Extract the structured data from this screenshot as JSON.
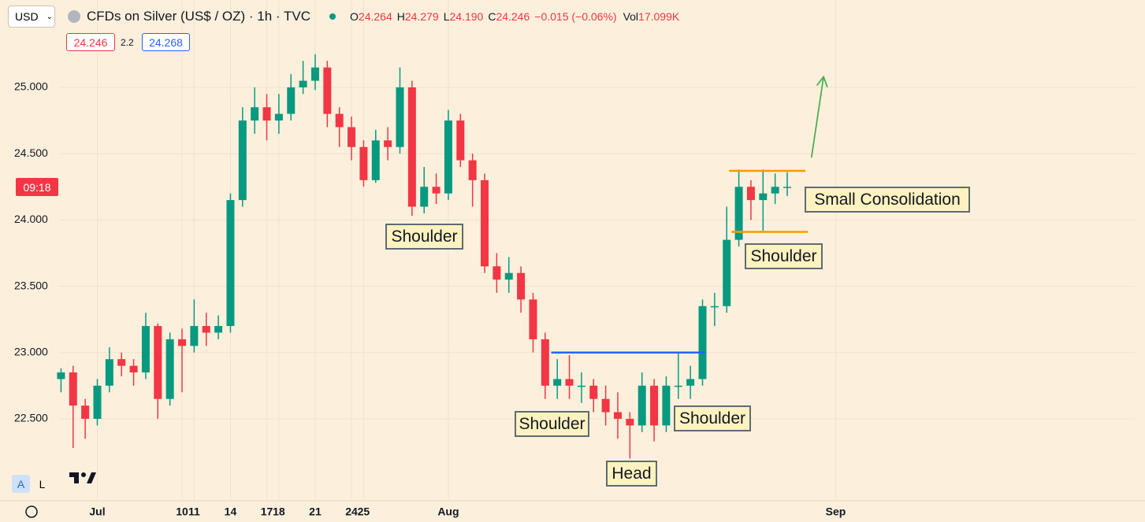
{
  "toolbar": {
    "currency": "USD",
    "symbol_title": "CFDs on Silver (US$ / OZ) · 1h · TVC",
    "ohlc": [
      {
        "label": "O",
        "value": "24.264"
      },
      {
        "label": "H",
        "value": "24.279"
      },
      {
        "label": "L",
        "value": "24.190"
      },
      {
        "label": "C",
        "value": "24.246"
      }
    ],
    "change": "−0.015 (−0.06%)",
    "volume_label": "Vol",
    "volume": "17.099K",
    "bid": "24.246",
    "spread": "2.2",
    "ask": "24.268",
    "countdown": "09:18",
    "scale_auto": "A",
    "scale_log": "L"
  },
  "chart_data": {
    "type": "candlestick",
    "x": [
      0,
      1,
      2,
      3,
      4,
      5,
      6,
      7,
      8,
      9,
      10,
      11,
      12,
      13,
      14,
      15,
      16,
      17,
      18,
      19,
      20,
      21,
      22,
      23,
      24,
      25,
      26,
      27,
      28,
      29,
      30,
      31,
      32,
      33,
      34,
      35,
      36,
      37,
      38,
      39,
      40,
      41,
      42,
      43,
      44,
      45,
      46,
      47,
      48,
      49,
      50,
      51,
      52,
      53,
      54,
      55,
      56,
      57,
      58,
      59,
      60
    ],
    "open": [
      22.8,
      22.85,
      22.6,
      22.5,
      22.75,
      22.95,
      22.9,
      22.85,
      23.2,
      22.65,
      23.1,
      23.05,
      23.2,
      23.15,
      23.2,
      24.15,
      24.75,
      24.85,
      24.75,
      24.8,
      25.0,
      25.05,
      25.15,
      24.8,
      24.7,
      24.55,
      24.3,
      24.6,
      24.55,
      25.0,
      24.1,
      24.25,
      24.2,
      24.75,
      24.45,
      24.3,
      23.65,
      23.55,
      23.6,
      23.4,
      23.1,
      22.75,
      22.8,
      22.75,
      22.75,
      22.65,
      22.55,
      22.5,
      22.45,
      22.75,
      22.45,
      22.75,
      22.75,
      22.8,
      23.35,
      23.35,
      23.85,
      24.25,
      24.15,
      24.2,
      24.25
    ],
    "high": [
      22.88,
      22.9,
      22.65,
      22.8,
      23.04,
      23.0,
      22.95,
      23.3,
      23.22,
      23.15,
      23.18,
      23.4,
      23.3,
      23.28,
      24.2,
      24.85,
      25.0,
      24.95,
      24.95,
      25.1,
      25.2,
      25.25,
      25.2,
      24.85,
      24.78,
      24.6,
      24.68,
      24.7,
      25.15,
      25.05,
      24.4,
      24.35,
      24.83,
      24.8,
      24.5,
      24.35,
      23.75,
      23.72,
      23.65,
      23.45,
      23.15,
      22.95,
      22.98,
      22.85,
      22.8,
      22.75,
      22.7,
      22.55,
      22.85,
      22.8,
      22.82,
      23.0,
      22.9,
      23.4,
      23.45,
      24.1,
      24.38,
      24.3,
      24.38,
      24.35,
      24.36
    ],
    "low": [
      22.7,
      22.28,
      22.35,
      22.45,
      22.7,
      22.82,
      22.75,
      22.8,
      22.5,
      22.6,
      22.7,
      23.0,
      23.05,
      23.1,
      23.15,
      24.1,
      24.65,
      24.6,
      24.65,
      24.75,
      24.95,
      24.98,
      24.7,
      24.55,
      24.45,
      24.25,
      24.28,
      24.45,
      24.5,
      24.03,
      24.05,
      24.12,
      24.15,
      24.4,
      24.1,
      23.6,
      23.45,
      23.45,
      23.3,
      23.0,
      22.65,
      22.65,
      22.65,
      22.62,
      22.55,
      22.45,
      22.35,
      22.2,
      22.4,
      22.33,
      22.4,
      22.65,
      22.65,
      22.75,
      23.2,
      23.3,
      23.8,
      24.0,
      23.92,
      24.12,
      24.18
    ],
    "close": [
      22.85,
      22.6,
      22.5,
      22.75,
      22.95,
      22.9,
      22.85,
      23.2,
      22.65,
      23.1,
      23.05,
      23.2,
      23.15,
      23.2,
      24.15,
      24.75,
      24.85,
      24.75,
      24.8,
      25.0,
      25.05,
      25.15,
      24.8,
      24.7,
      24.55,
      24.3,
      24.6,
      24.55,
      25.0,
      24.1,
      24.25,
      24.2,
      24.75,
      24.45,
      24.3,
      23.65,
      23.55,
      23.6,
      23.4,
      23.1,
      22.75,
      22.8,
      22.75,
      22.75,
      22.65,
      22.55,
      22.5,
      22.45,
      22.75,
      22.45,
      22.75,
      22.75,
      22.8,
      23.35,
      23.35,
      23.85,
      24.25,
      24.15,
      24.2,
      24.25,
      24.25
    ],
    "up_color": "#089981",
    "down_color": "#f23645",
    "xlim": [
      -5.04,
      88.71
    ],
    "ylim": [
      21.888,
      25.659
    ],
    "xticks": [
      {
        "value": 3,
        "label": "Jul"
      },
      10,
      17,
      24,
      {
        "value": 32,
        "label": "Aug"
      },
      14,
      21,
      {
        "value": 64,
        "label": "Sep"
      },
      11,
      18,
      25
    ],
    "yticks": [
      {
        "value": 22.5,
        "label": "22.500"
      },
      {
        "value": 23,
        "label": "23.000"
      },
      {
        "value": 23.5,
        "label": "23.500"
      },
      {
        "value": 24,
        "label": "24.000"
      },
      {
        "value": 24.5,
        "label": "24.500"
      },
      {
        "value": 25,
        "label": "25.000"
      }
    ],
    "grid": true,
    "lines": [
      {
        "x": [
          40.5,
          53.2
        ],
        "y": [
          23.0,
          23.0
        ],
        "color": "#2962ff"
      },
      {
        "x": [
          55.2,
          61.5
        ],
        "y": [
          24.37,
          24.37
        ],
        "color": "#ff9800"
      },
      {
        "x": [
          55.4,
          61.7
        ],
        "y": [
          23.91,
          23.91
        ],
        "color": "#ff9800"
      },
      {
        "x": [
          62.0,
          63.0
        ],
        "y": [
          24.47,
          25.08
        ],
        "color": "#4caf50",
        "arrow": true
      }
    ],
    "annotations": [
      "Shoulder",
      "Shoulder",
      "Head",
      "Shoulder",
      "Shoulder",
      "Small Consolidation"
    ]
  }
}
